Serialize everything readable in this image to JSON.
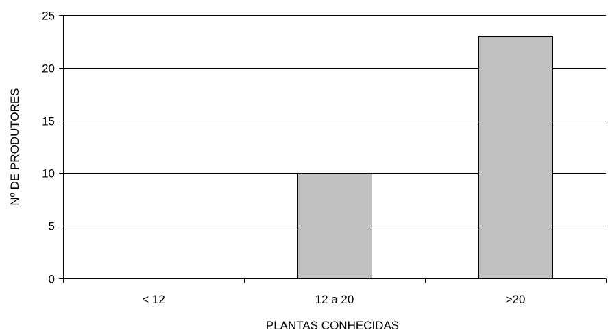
{
  "chart_data": {
    "type": "bar",
    "categories": [
      "< 12",
      "12 a 20",
      ">20"
    ],
    "values": [
      0,
      10,
      23
    ],
    "title": "",
    "xlabel": "PLANTAS CONHECIDAS",
    "ylabel": "Nº DE PRODUTORES",
    "ylim": [
      0,
      25
    ],
    "yticks": [
      0,
      5,
      10,
      15,
      20,
      25
    ],
    "grid": true,
    "legend": "none",
    "colors": {
      "bar_fill": "#c0c0c0",
      "bar_stroke": "#000000",
      "grid": "#000000"
    }
  }
}
